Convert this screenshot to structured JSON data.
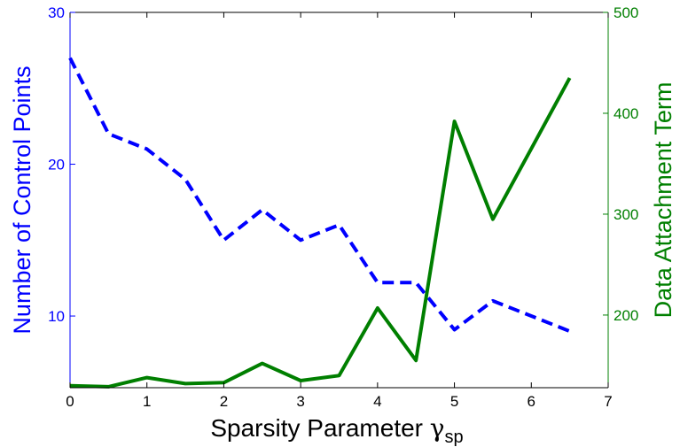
{
  "chart_data": {
    "type": "line",
    "xlabel_main": "Sparsity Parameter ",
    "xlabel_symbol": "γ",
    "xlabel_sub": "sp",
    "ylabel_left": "Number of Control Points",
    "ylabel_right": "Data Attachment Term",
    "xlim": [
      0,
      7
    ],
    "ylim_left": [
      5.28,
      30
    ],
    "ylim_right": [
      128,
      500
    ],
    "xticks": [
      "0",
      "1",
      "2",
      "3",
      "4",
      "5",
      "6",
      "7"
    ],
    "yticks_left": [
      "10",
      "20",
      "30"
    ],
    "yticks_right": [
      "200",
      "300",
      "400",
      "500"
    ],
    "colors": {
      "left": "#0000ff",
      "right": "#007f00",
      "axis": "#000000"
    },
    "series": [
      {
        "axis": "left",
        "style": "dashed",
        "x": [
          0,
          0.5,
          1,
          1.5,
          2,
          2.5,
          3,
          3.5,
          4,
          4.5,
          5,
          5.5,
          6,
          6.5
        ],
        "values": [
          27,
          22,
          21,
          19,
          15,
          17,
          15,
          16,
          12.2,
          12.2,
          9.1,
          11,
          10,
          9
        ]
      },
      {
        "axis": "right",
        "style": "solid",
        "x": [
          0,
          0.5,
          1,
          1.5,
          2,
          2.5,
          3,
          3.5,
          4,
          4.5,
          5,
          5.5,
          6,
          6.5
        ],
        "values": [
          130,
          129,
          138,
          132,
          133,
          152,
          135,
          140,
          207,
          155,
          392,
          295,
          365,
          435
        ]
      }
    ]
  }
}
